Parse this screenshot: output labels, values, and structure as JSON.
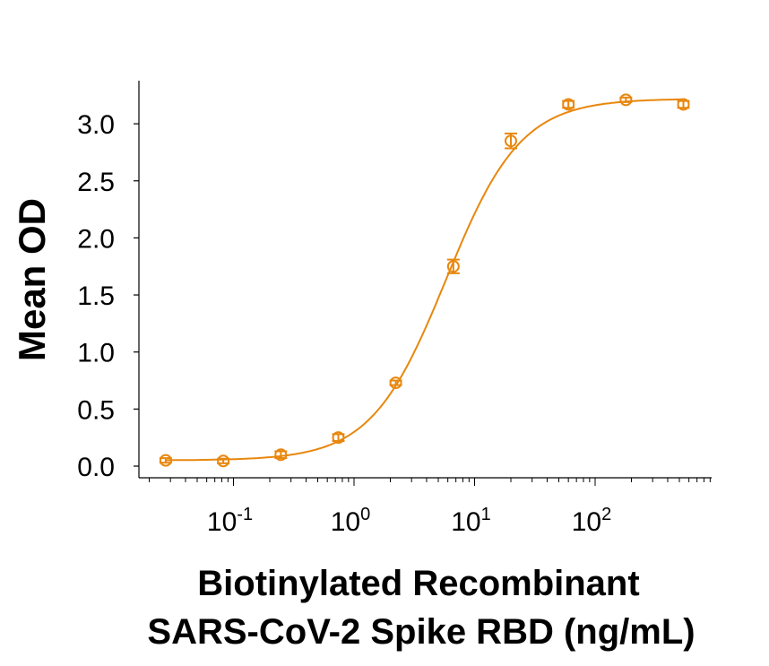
{
  "chart_data": {
    "type": "scatter",
    "title": "",
    "xlabel": [
      "Biotinylated Recombinant",
      "SARS-CoV-2 Spike RBD (ng/mL)"
    ],
    "ylabel": "Mean OD",
    "x_scale": "log",
    "xlim": [
      0.0174,
      900
    ],
    "ylim": [
      0,
      3.38
    ],
    "x_ticks": [
      {
        "base": "10",
        "exp": "-1",
        "value": 0.1
      },
      {
        "base": "10",
        "exp": "0",
        "value": 1
      },
      {
        "base": "10",
        "exp": "1",
        "value": 10
      },
      {
        "base": "10",
        "exp": "2",
        "value": 100
      }
    ],
    "y_ticks": [
      "0.0",
      "0.5",
      "1.0",
      "1.5",
      "2.0",
      "2.5",
      "3.0"
    ],
    "grid": false,
    "color": "#E8870E",
    "series": [
      {
        "x": [
          0.0274,
          0.0823,
          0.247,
          0.741,
          2.22,
          6.67,
          20,
          60,
          180,
          540
        ],
        "y": [
          0.05,
          0.045,
          0.1,
          0.25,
          0.73,
          1.75,
          2.85,
          3.17,
          3.21,
          3.17
        ],
        "error": [
          0.02,
          0.02,
          0.03,
          0.03,
          0.02,
          0.06,
          0.065,
          0.03,
          0.02,
          0.03
        ],
        "marker": "open-circle",
        "fit": "4-parameter logistic curve"
      }
    ]
  }
}
